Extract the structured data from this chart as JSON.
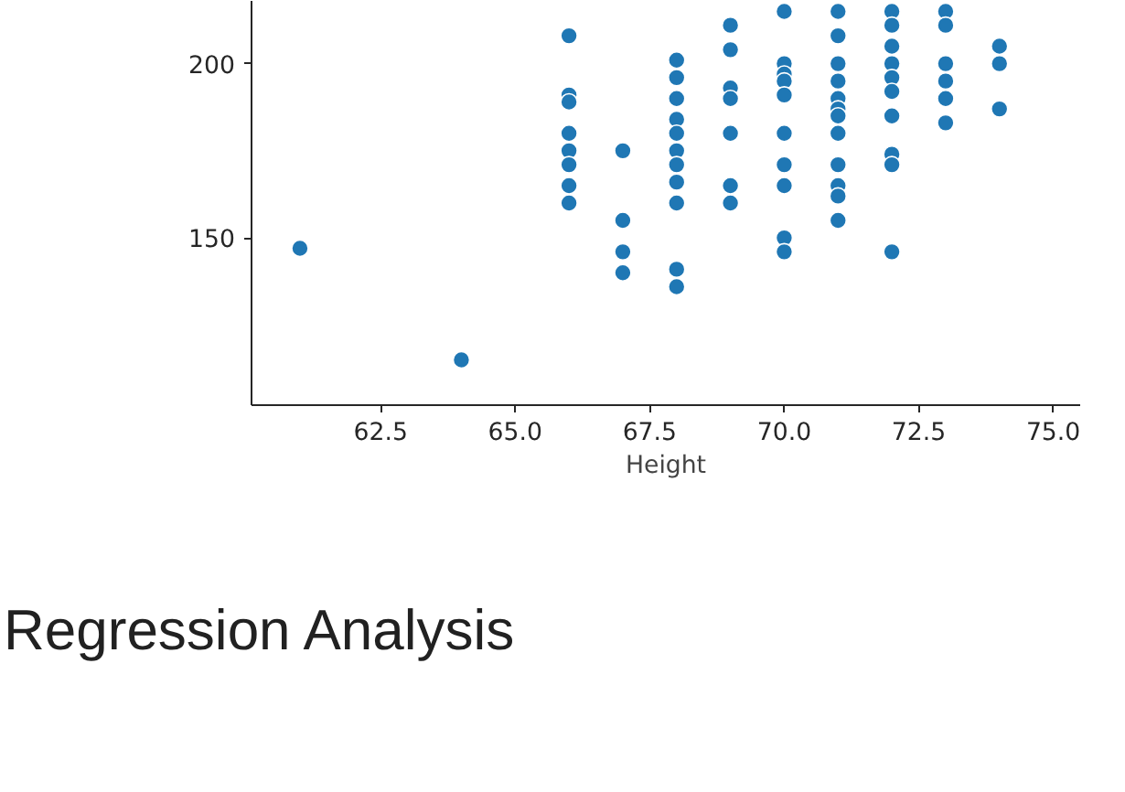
{
  "chart_data": {
    "type": "scatter",
    "xlabel": "Height",
    "color": "#1f77b4",
    "marker": "circle",
    "grid": false,
    "x": [
      61,
      64,
      66,
      66,
      66,
      66,
      66,
      66,
      66,
      66,
      67,
      67,
      67,
      67,
      68,
      68,
      68,
      68,
      68,
      68,
      68,
      68,
      68,
      68,
      68,
      69,
      69,
      69,
      69,
      69,
      69,
      69,
      70,
      70,
      70,
      70,
      70,
      70,
      70,
      70,
      70,
      70,
      71,
      71,
      71,
      71,
      71,
      71,
      71,
      71,
      71,
      71,
      71,
      71,
      72,
      72,
      72,
      72,
      72,
      72,
      72,
      72,
      72,
      72,
      73,
      73,
      73,
      73,
      73,
      73,
      74,
      74,
      74
    ],
    "values": [
      147,
      115,
      208,
      191,
      189,
      180,
      175,
      171,
      165,
      160,
      175,
      155,
      146,
      140,
      201,
      196,
      190,
      184,
      180,
      175,
      171,
      166,
      160,
      141,
      136,
      211,
      204,
      193,
      190,
      180,
      165,
      160,
      215,
      200,
      197,
      195,
      191,
      180,
      171,
      165,
      150,
      146,
      215,
      208,
      200,
      195,
      190,
      187,
      185,
      180,
      171,
      165,
      162,
      155,
      215,
      211,
      205,
      200,
      196,
      192,
      185,
      174,
      171,
      146,
      215,
      211,
      200,
      195,
      190,
      183,
      205,
      200,
      187
    ],
    "xlim": [
      60.1,
      75.5
    ],
    "ylim": [
      102,
      218
    ],
    "xticks": [
      {
        "value": 62.5,
        "label": "62.5"
      },
      {
        "value": 65,
        "label": "65.0"
      },
      {
        "value": 67.5,
        "label": "67.5"
      },
      {
        "value": 70,
        "label": "70.0"
      },
      {
        "value": 72.5,
        "label": "72.5"
      },
      {
        "value": 75,
        "label": "75.0"
      }
    ],
    "yticks": [
      150,
      200
    ],
    "annotations": [
      "Regression Analysis"
    ]
  }
}
